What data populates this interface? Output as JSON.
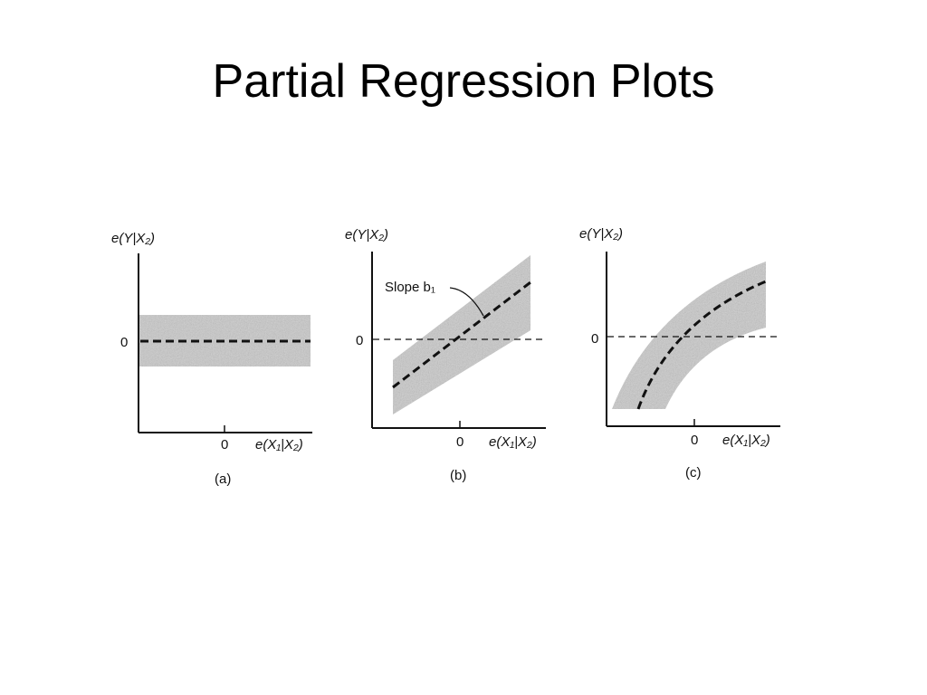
{
  "slide": {
    "title": "Partial Regression Plots"
  },
  "panels": [
    {
      "id": "a",
      "caption": "(a)",
      "y_axis_label": "e(Y|X₂)",
      "x_axis_label": "e(X₁|X₂)",
      "y_zero_label": "0",
      "x_zero_label": "0",
      "pattern": "horizontal band, zero slope",
      "annotation": ""
    },
    {
      "id": "b",
      "caption": "(b)",
      "y_axis_label": "e(Y|X₂)",
      "x_axis_label": "e(X₁|X₂)",
      "y_zero_label": "0",
      "x_zero_label": "0",
      "pattern": "linear band with positive slope",
      "annotation": "Slope b₁"
    },
    {
      "id": "c",
      "caption": "(c)",
      "y_axis_label": "e(Y|X₂)",
      "x_axis_label": "e(X₁|X₂)",
      "y_zero_label": "0",
      "x_zero_label": "0",
      "pattern": "curved (concave) band",
      "annotation": ""
    }
  ],
  "colors": {
    "band": "#c9c9c9",
    "axis": "#111111",
    "trend_line": "#111111"
  }
}
